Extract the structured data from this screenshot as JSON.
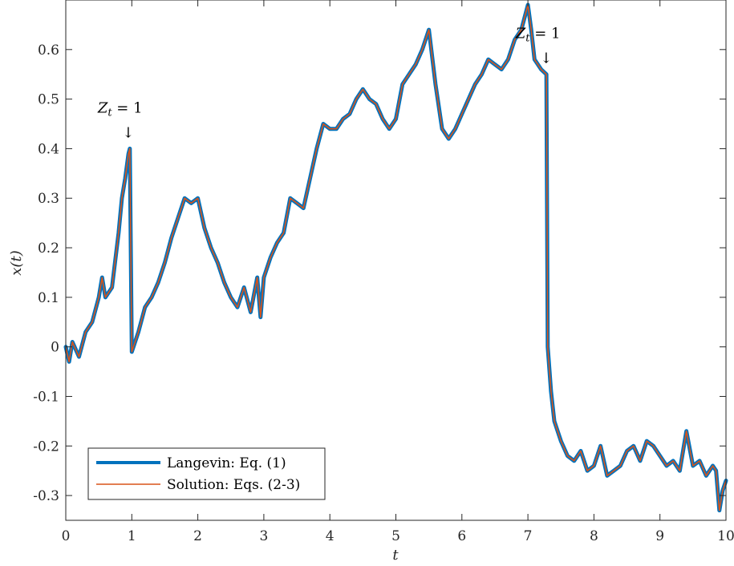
{
  "chart_data": {
    "type": "line",
    "xlabel": "t",
    "ylabel": "x(t)",
    "xlim": [
      0,
      10
    ],
    "ylim": [
      -0.35,
      0.7
    ],
    "x_ticks": [
      0,
      1,
      2,
      3,
      4,
      5,
      6,
      7,
      8,
      9,
      10
    ],
    "x_tick_labels": [
      "0",
      "1",
      "2",
      "3",
      "4",
      "5",
      "6",
      "7",
      "8",
      "9",
      "10"
    ],
    "y_ticks": [
      -0.3,
      -0.2,
      -0.1,
      0,
      0.1,
      0.2,
      0.3,
      0.4,
      0.5,
      0.6
    ],
    "y_tick_labels": [
      "-0.3",
      "-0.2",
      "-0.1",
      "0",
      "0.1",
      "0.2",
      "0.3",
      "0.4",
      "0.5",
      "0.6"
    ],
    "grid": false,
    "legend_position": "bottom-left",
    "series": [
      {
        "name": "Langevin: Eq. (1)",
        "color": "#0072BD",
        "x": [
          0,
          0.05,
          0.1,
          0.2,
          0.3,
          0.4,
          0.5,
          0.55,
          0.6,
          0.7,
          0.8,
          0.85,
          0.9,
          0.95,
          0.97,
          1.0,
          1.1,
          1.2,
          1.3,
          1.4,
          1.5,
          1.6,
          1.7,
          1.8,
          1.9,
          2.0,
          2.1,
          2.2,
          2.3,
          2.4,
          2.5,
          2.6,
          2.7,
          2.8,
          2.9,
          2.95,
          3.0,
          3.1,
          3.2,
          3.3,
          3.4,
          3.5,
          3.6,
          3.7,
          3.8,
          3.9,
          4.0,
          4.1,
          4.2,
          4.3,
          4.4,
          4.5,
          4.6,
          4.7,
          4.8,
          4.9,
          5.0,
          5.1,
          5.2,
          5.3,
          5.4,
          5.5,
          5.6,
          5.7,
          5.8,
          5.9,
          6.0,
          6.1,
          6.2,
          6.3,
          6.4,
          6.5,
          6.6,
          6.7,
          6.8,
          6.9,
          7.0,
          7.05,
          7.1,
          7.2,
          7.28,
          7.3,
          7.35,
          7.4,
          7.5,
          7.6,
          7.7,
          7.8,
          7.9,
          8.0,
          8.1,
          8.2,
          8.3,
          8.4,
          8.5,
          8.6,
          8.7,
          8.8,
          8.9,
          9.0,
          9.1,
          9.2,
          9.3,
          9.4,
          9.5,
          9.6,
          9.7,
          9.8,
          9.85,
          9.9,
          9.95,
          10.0
        ],
        "y": [
          0,
          -0.03,
          0.01,
          -0.02,
          0.03,
          0.05,
          0.1,
          0.14,
          0.1,
          0.12,
          0.23,
          0.3,
          0.34,
          0.39,
          0.4,
          -0.01,
          0.03,
          0.08,
          0.1,
          0.13,
          0.17,
          0.22,
          0.26,
          0.3,
          0.29,
          0.3,
          0.24,
          0.2,
          0.17,
          0.13,
          0.1,
          0.08,
          0.12,
          0.07,
          0.14,
          0.06,
          0.14,
          0.18,
          0.21,
          0.23,
          0.3,
          0.29,
          0.28,
          0.34,
          0.4,
          0.45,
          0.44,
          0.44,
          0.46,
          0.47,
          0.5,
          0.52,
          0.5,
          0.49,
          0.46,
          0.44,
          0.46,
          0.53,
          0.55,
          0.57,
          0.6,
          0.64,
          0.53,
          0.44,
          0.42,
          0.44,
          0.47,
          0.5,
          0.53,
          0.55,
          0.58,
          0.57,
          0.56,
          0.58,
          0.62,
          0.64,
          0.69,
          0.64,
          0.58,
          0.56,
          0.55,
          0.0,
          -0.09,
          -0.15,
          -0.19,
          -0.22,
          -0.23,
          -0.21,
          -0.25,
          -0.24,
          -0.2,
          -0.26,
          -0.25,
          -0.24,
          -0.21,
          -0.2,
          -0.23,
          -0.19,
          -0.2,
          -0.22,
          -0.24,
          -0.23,
          -0.25,
          -0.17,
          -0.24,
          -0.23,
          -0.26,
          -0.24,
          -0.25,
          -0.33,
          -0.29,
          -0.27
        ]
      },
      {
        "name": "Solution: Eqs. (2-3)",
        "color": "#D95319"
      }
    ],
    "annotations": [
      {
        "label": "Z_t = 1",
        "x": 0.97,
        "y": 0.4
      },
      {
        "label": "Z_t = 1",
        "x": 7.3,
        "y": 0.55
      }
    ]
  }
}
